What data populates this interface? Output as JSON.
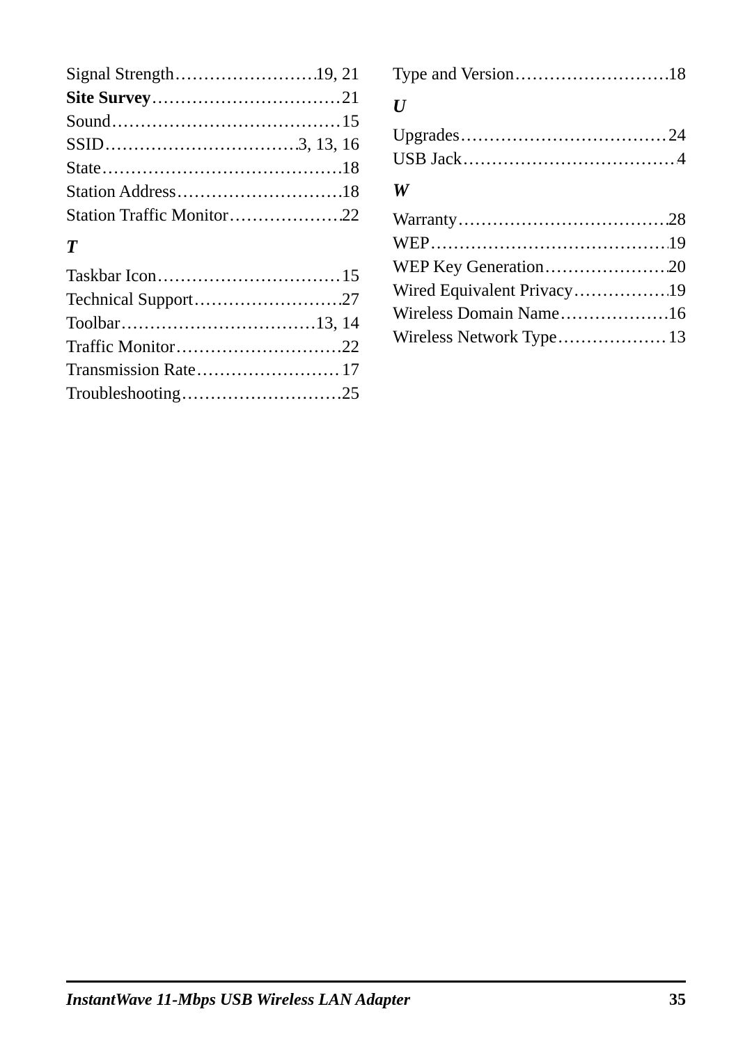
{
  "left_column": {
    "entries_before_T": [
      {
        "term": "Signal Strength",
        "pages": "19, 21",
        "bold": false
      },
      {
        "term": "Site Survey",
        "pages": "21",
        "bold": true
      },
      {
        "term": "Sound",
        "pages": "15",
        "bold": false
      },
      {
        "term": "SSID",
        "pages": "3, 13, 16",
        "bold": false
      },
      {
        "term": "State",
        "pages": "18",
        "bold": false
      },
      {
        "term": "Station Address",
        "pages": "18",
        "bold": false
      },
      {
        "term": "Station Traffic Monitor",
        "pages": "22",
        "bold": false
      }
    ],
    "section_T": "T",
    "entries_T": [
      {
        "term": "Taskbar Icon",
        "pages": "15",
        "bold": false
      },
      {
        "term": "Technical Support",
        "pages": "27",
        "bold": false
      },
      {
        "term": "Toolbar",
        "pages": "13, 14",
        "bold": false
      },
      {
        "term": "Traffic Monitor",
        "pages": "22",
        "bold": false
      },
      {
        "term": "Transmission Rate",
        "pages": "17",
        "bold": false
      },
      {
        "term": "Troubleshooting",
        "pages": "25",
        "bold": false
      }
    ]
  },
  "right_column": {
    "entries_before_U": [
      {
        "term": "Type and Version",
        "pages": "18",
        "bold": false
      }
    ],
    "section_U": "U",
    "entries_U": [
      {
        "term": "Upgrades",
        "pages": "24",
        "bold": false
      },
      {
        "term": "USB Jack",
        "pages": "4",
        "bold": false
      }
    ],
    "section_W": "W",
    "entries_W": [
      {
        "term": "Warranty",
        "pages": "28",
        "bold": false
      },
      {
        "term": "WEP",
        "pages": "19",
        "bold": false
      },
      {
        "term": "WEP Key Generation",
        "pages": "20",
        "bold": false
      },
      {
        "term": "Wired Equivalent Privacy",
        "pages": "19",
        "bold": false
      },
      {
        "term": "Wireless Domain Name",
        "pages": "16",
        "bold": false
      },
      {
        "term": "Wireless Network Type",
        "pages": "13",
        "bold": false
      }
    ]
  },
  "footer": {
    "title": "InstantWave 11-Mbps USB Wireless LAN Adapter",
    "page_number": "35"
  }
}
